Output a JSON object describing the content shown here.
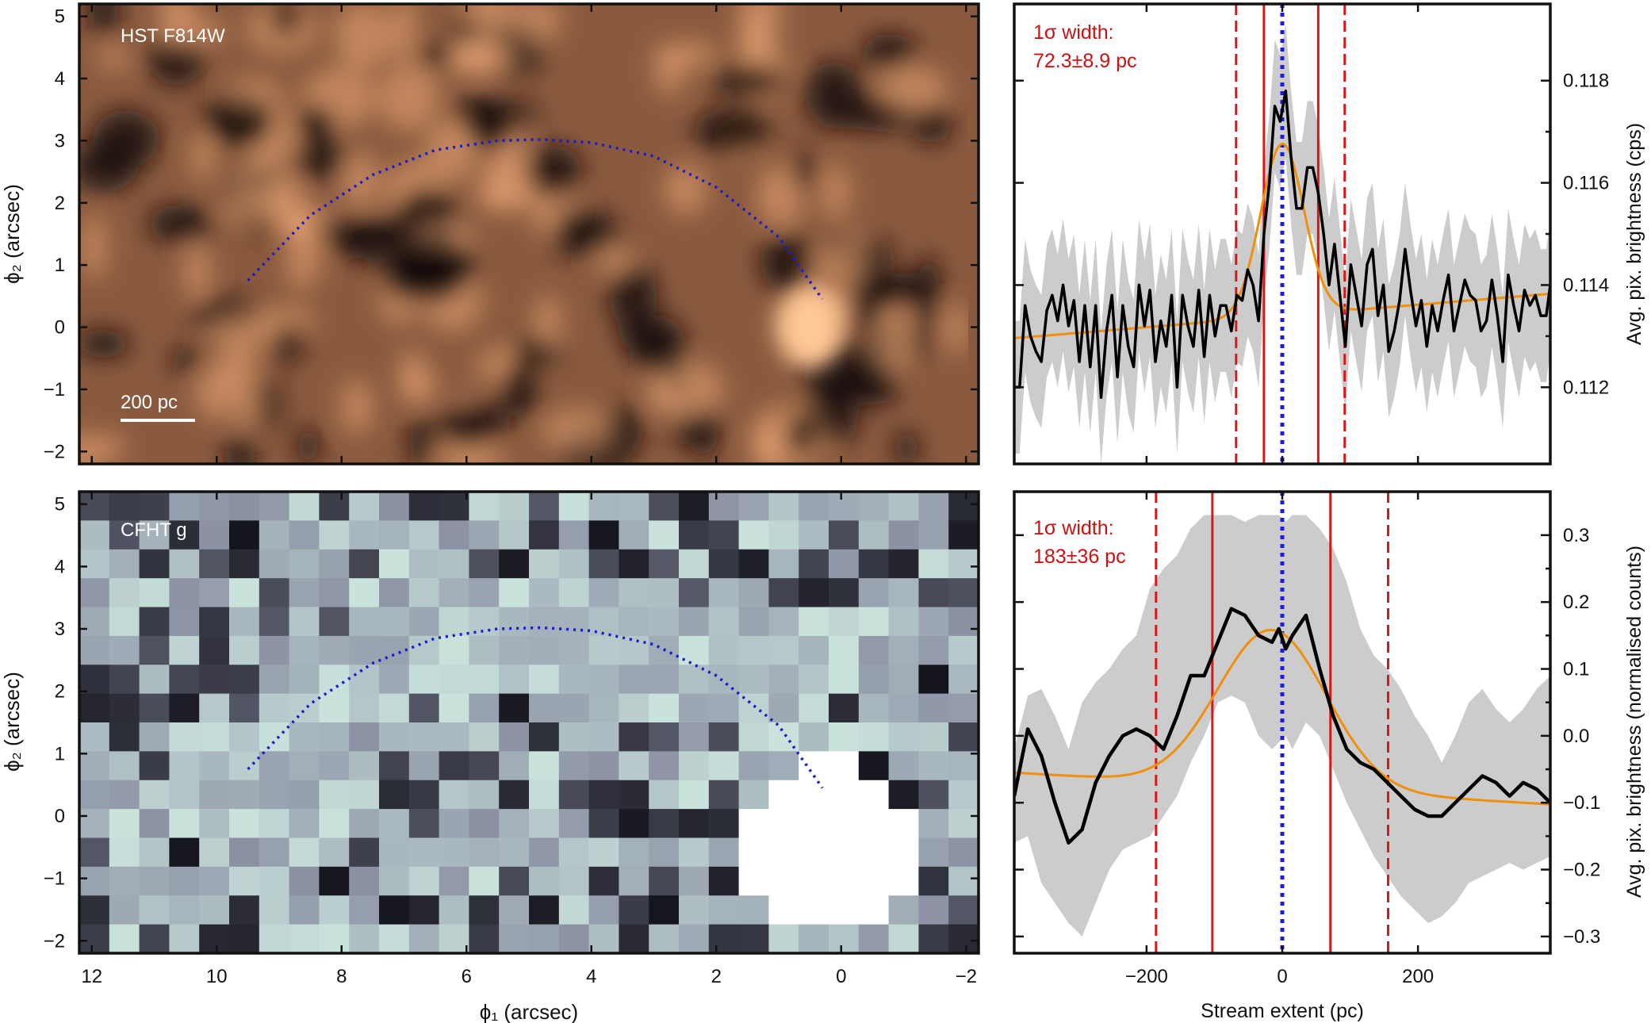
{
  "colors": {
    "hst_bg": "#8a5a3e",
    "hst_dark": "#140b08",
    "hst_light": "#f0aa78",
    "cfht_bg": "#8a8fa2",
    "cfht_dark": "#08080f",
    "cfht_light": "#c9e2dc",
    "curve": "#1a1ad0",
    "profile": "#000000",
    "fit": "#f0900a",
    "band": "#cccccc",
    "width_lines": "#d81818",
    "center_line": "#1a1ae6",
    "annot_red": "#d01010"
  },
  "panels": {
    "hst": {
      "label": "HST F814W",
      "scalebar_label": "200 pc",
      "ylabel": "ϕ₂ (arcsec)"
    },
    "cfht": {
      "label": "CFHT g",
      "ylabel": "ϕ₂ (arcsec)",
      "xlabel": "ϕ₁ (arcsec)"
    },
    "top_profile": {
      "annot_line1": "1σ width:",
      "annot_line2": "72.3±8.9 pc",
      "ylabel": "Avg. pix. brightness (cps)"
    },
    "bottom_profile": {
      "annot_line1": "1σ width:",
      "annot_line2": "183±36 pc",
      "ylabel": "Avg. pix. brightness (normalised counts)",
      "xlabel": "Stream extent (pc)"
    }
  },
  "chart_data": [
    {
      "type": "heatmap",
      "name": "HST F814W image",
      "xlim": [
        12.2,
        -2.2
      ],
      "ylim": [
        -2.2,
        5.2
      ],
      "x_ticks": [
        12,
        10,
        8,
        6,
        4,
        2,
        0,
        -2
      ],
      "y_ticks": [
        5,
        4,
        3,
        2,
        1,
        0,
        -1,
        -2
      ],
      "y_tick_labels": [
        "5",
        "4",
        "3",
        "2",
        "1",
        "0",
        "−1",
        "−2"
      ],
      "stream_track": {
        "x": [
          9.5,
          8.5,
          7.5,
          6.5,
          5.5,
          4.8,
          4,
          3,
          2,
          1,
          0.3
        ],
        "y": [
          0.75,
          1.8,
          2.45,
          2.85,
          3.0,
          3.02,
          2.97,
          2.75,
          2.25,
          1.45,
          0.45
        ]
      },
      "bright_source": {
        "x": 0.5,
        "y": 0.0
      }
    },
    {
      "type": "heatmap",
      "name": "CFHT g image",
      "xlim": [
        12.2,
        -2.2
      ],
      "ylim": [
        -2.2,
        5.2
      ],
      "x_ticks": [
        12,
        10,
        8,
        6,
        4,
        2,
        0,
        -2
      ],
      "x_tick_labels": [
        "12",
        "10",
        "8",
        "6",
        "4",
        "2",
        "0",
        "−2"
      ],
      "y_ticks": [
        5,
        4,
        3,
        2,
        1,
        0,
        -1,
        -2
      ],
      "y_tick_labels": [
        "5",
        "4",
        "3",
        "2",
        "1",
        "0",
        "−1",
        "−2"
      ],
      "stream_track": {
        "x": [
          9.5,
          8.5,
          7.5,
          6.5,
          5.5,
          4.8,
          4,
          3,
          2,
          1,
          0.3
        ],
        "y": [
          0.75,
          1.8,
          2.45,
          2.85,
          3.0,
          3.02,
          2.97,
          2.75,
          2.25,
          1.45,
          0.45
        ]
      },
      "bright_source": {
        "x": 0.2,
        "y": -0.4
      }
    },
    {
      "type": "line",
      "name": "HST stream profile",
      "xlim": [
        -395,
        395
      ],
      "ylim": [
        0.1105,
        0.1195
      ],
      "x_ticks": [
        -200,
        0,
        200
      ],
      "y_ticks": [
        0.112,
        0.114,
        0.116,
        0.118
      ],
      "y_tick_labels": [
        "0.112",
        "0.114",
        "0.116",
        "0.118"
      ],
      "y_minor_ticks": [
        0.113,
        0.115,
        0.117
      ],
      "profile": {
        "x": [
          -395,
          -387,
          -379,
          -371,
          -363,
          -355,
          -347,
          -339,
          -331,
          -323,
          -315,
          -307,
          -299,
          -291,
          -283,
          -275,
          -267,
          -259,
          -251,
          -243,
          -235,
          -227,
          -219,
          -211,
          -203,
          -195,
          -187,
          -179,
          -171,
          -163,
          -155,
          -147,
          -139,
          -131,
          -123,
          -115,
          -107,
          -99,
          -91,
          -83,
          -75,
          -67,
          -59,
          -51,
          -43,
          -35,
          -27,
          -19,
          -11,
          -3,
          5,
          13,
          21,
          29,
          37,
          45,
          53,
          61,
          69,
          77,
          85,
          93,
          101,
          109,
          117,
          125,
          133,
          141,
          149,
          157,
          165,
          173,
          181,
          189,
          197,
          205,
          213,
          221,
          229,
          237,
          245,
          253,
          261,
          269,
          277,
          285,
          293,
          301,
          309,
          317,
          325,
          333,
          341,
          349,
          357,
          365,
          373,
          381,
          389,
          395
        ],
        "y": [
          0.112,
          0.112,
          0.1136,
          0.113,
          0.1127,
          0.1125,
          0.1135,
          0.1138,
          0.1133,
          0.114,
          0.1132,
          0.1137,
          0.1125,
          0.1136,
          0.1124,
          0.1136,
          0.1118,
          0.1131,
          0.1138,
          0.1122,
          0.1136,
          0.1128,
          0.1124,
          0.114,
          0.1132,
          0.1139,
          0.1125,
          0.1133,
          0.1128,
          0.1138,
          0.112,
          0.1138,
          0.1132,
          0.1128,
          0.1139,
          0.1126,
          0.1138,
          0.113,
          0.1136,
          0.1136,
          0.1131,
          0.1138,
          0.1137,
          0.1143,
          0.114,
          0.1133,
          0.115,
          0.116,
          0.1175,
          0.1172,
          0.1178,
          0.1165,
          0.1155,
          0.1155,
          0.1163,
          0.1163,
          0.1158,
          0.115,
          0.114,
          0.1148,
          0.1138,
          0.1128,
          0.1144,
          0.1138,
          0.1132,
          0.1144,
          0.1147,
          0.1134,
          0.114,
          0.1127,
          0.1131,
          0.1137,
          0.1147,
          0.1139,
          0.1132,
          0.1137,
          0.1128,
          0.1136,
          0.1131,
          0.1137,
          0.1142,
          0.1131,
          0.1136,
          0.1141,
          0.1138,
          0.1137,
          0.1131,
          0.1133,
          0.1141,
          0.1134,
          0.1125,
          0.1142,
          0.1136,
          0.1131,
          0.1139,
          0.1136,
          0.1138,
          0.1134,
          0.1134,
          0.114
        ]
      },
      "band": {
        "lower_offset": -0.0013,
        "upper_offset": 0.0013
      },
      "fit": {
        "model": "gaussian",
        "baseline_at_xmin": 0.11296,
        "baseline_slope_per_pc": 1.1e-06,
        "amplitude": 0.00337,
        "center": 0,
        "sigma": 32
      },
      "width_lines": {
        "solid": [
          -27,
          53
        ],
        "dashed": [
          -68,
          92
        ],
        "center_dotted": 0
      }
    },
    {
      "type": "line",
      "name": "CFHT stream profile",
      "xlim": [
        -395,
        395
      ],
      "ylim": [
        -0.325,
        0.365
      ],
      "x_ticks": [
        -200,
        0,
        200
      ],
      "x_tick_labels": [
        "−200",
        "0",
        "200"
      ],
      "y_ticks": [
        -0.3,
        -0.2,
        -0.1,
        0.0,
        0.1,
        0.2,
        0.3
      ],
      "y_tick_labels": [
        "−0.3",
        "−0.2",
        "−0.1",
        "0.0",
        "0.1",
        "0.2",
        "0.3"
      ],
      "y_minor_ticks": [
        -0.25,
        -0.15,
        -0.05,
        0.05,
        0.15,
        0.25
      ],
      "profile": {
        "x": [
          -395,
          -375,
          -355,
          -335,
          -315,
          -295,
          -275,
          -255,
          -235,
          -215,
          -195,
          -175,
          -155,
          -135,
          -115,
          -95,
          -75,
          -55,
          -35,
          -15,
          -5,
          5,
          15,
          35,
          55,
          75,
          95,
          115,
          135,
          155,
          175,
          195,
          215,
          235,
          255,
          275,
          295,
          315,
          335,
          355,
          375,
          395
        ],
        "y": [
          -0.09,
          0.01,
          -0.03,
          -0.1,
          -0.16,
          -0.14,
          -0.07,
          -0.03,
          0.0,
          0.01,
          0.0,
          -0.02,
          0.03,
          0.09,
          0.09,
          0.14,
          0.19,
          0.18,
          0.15,
          0.14,
          0.16,
          0.13,
          0.15,
          0.18,
          0.1,
          0.03,
          -0.02,
          -0.04,
          -0.05,
          -0.07,
          -0.09,
          -0.11,
          -0.12,
          -0.12,
          -0.1,
          -0.08,
          -0.06,
          -0.07,
          -0.09,
          -0.07,
          -0.08,
          -0.1
        ]
      },
      "band_upper": [
        -0.02,
        0.06,
        0.07,
        0.03,
        -0.02,
        0.05,
        0.08,
        0.1,
        0.13,
        0.15,
        0.22,
        0.25,
        0.27,
        0.31,
        0.33,
        0.33,
        0.33,
        0.32,
        0.33,
        0.33,
        0.33,
        0.32,
        0.33,
        0.33,
        0.31,
        0.28,
        0.23,
        0.16,
        0.12,
        0.1,
        0.07,
        0.03,
        0.0,
        -0.04,
        0.0,
        0.05,
        0.07,
        0.04,
        0.02,
        0.04,
        0.07,
        0.09
      ],
      "band_lower": [
        -0.16,
        -0.15,
        -0.22,
        -0.25,
        -0.28,
        -0.3,
        -0.25,
        -0.2,
        -0.17,
        -0.16,
        -0.15,
        -0.12,
        -0.09,
        -0.04,
        0.0,
        0.05,
        0.06,
        0.05,
        0.0,
        -0.02,
        -0.01,
        0.0,
        -0.02,
        0.02,
        0.0,
        -0.05,
        -0.1,
        -0.14,
        -0.18,
        -0.21,
        -0.24,
        -0.26,
        -0.28,
        -0.27,
        -0.25,
        -0.22,
        -0.21,
        -0.2,
        -0.19,
        -0.2,
        -0.19,
        -0.18
      ],
      "fit": {
        "model": "gaussian",
        "baseline_at_xmin": -0.055,
        "baseline_slope_per_pc": -6e-05,
        "amplitude": 0.236,
        "center": -15,
        "sigma": 80
      },
      "width_lines": {
        "solid": [
          -103,
          71
        ],
        "dashed": [
          -186,
          156
        ],
        "center_dotted": 0
      }
    }
  ]
}
